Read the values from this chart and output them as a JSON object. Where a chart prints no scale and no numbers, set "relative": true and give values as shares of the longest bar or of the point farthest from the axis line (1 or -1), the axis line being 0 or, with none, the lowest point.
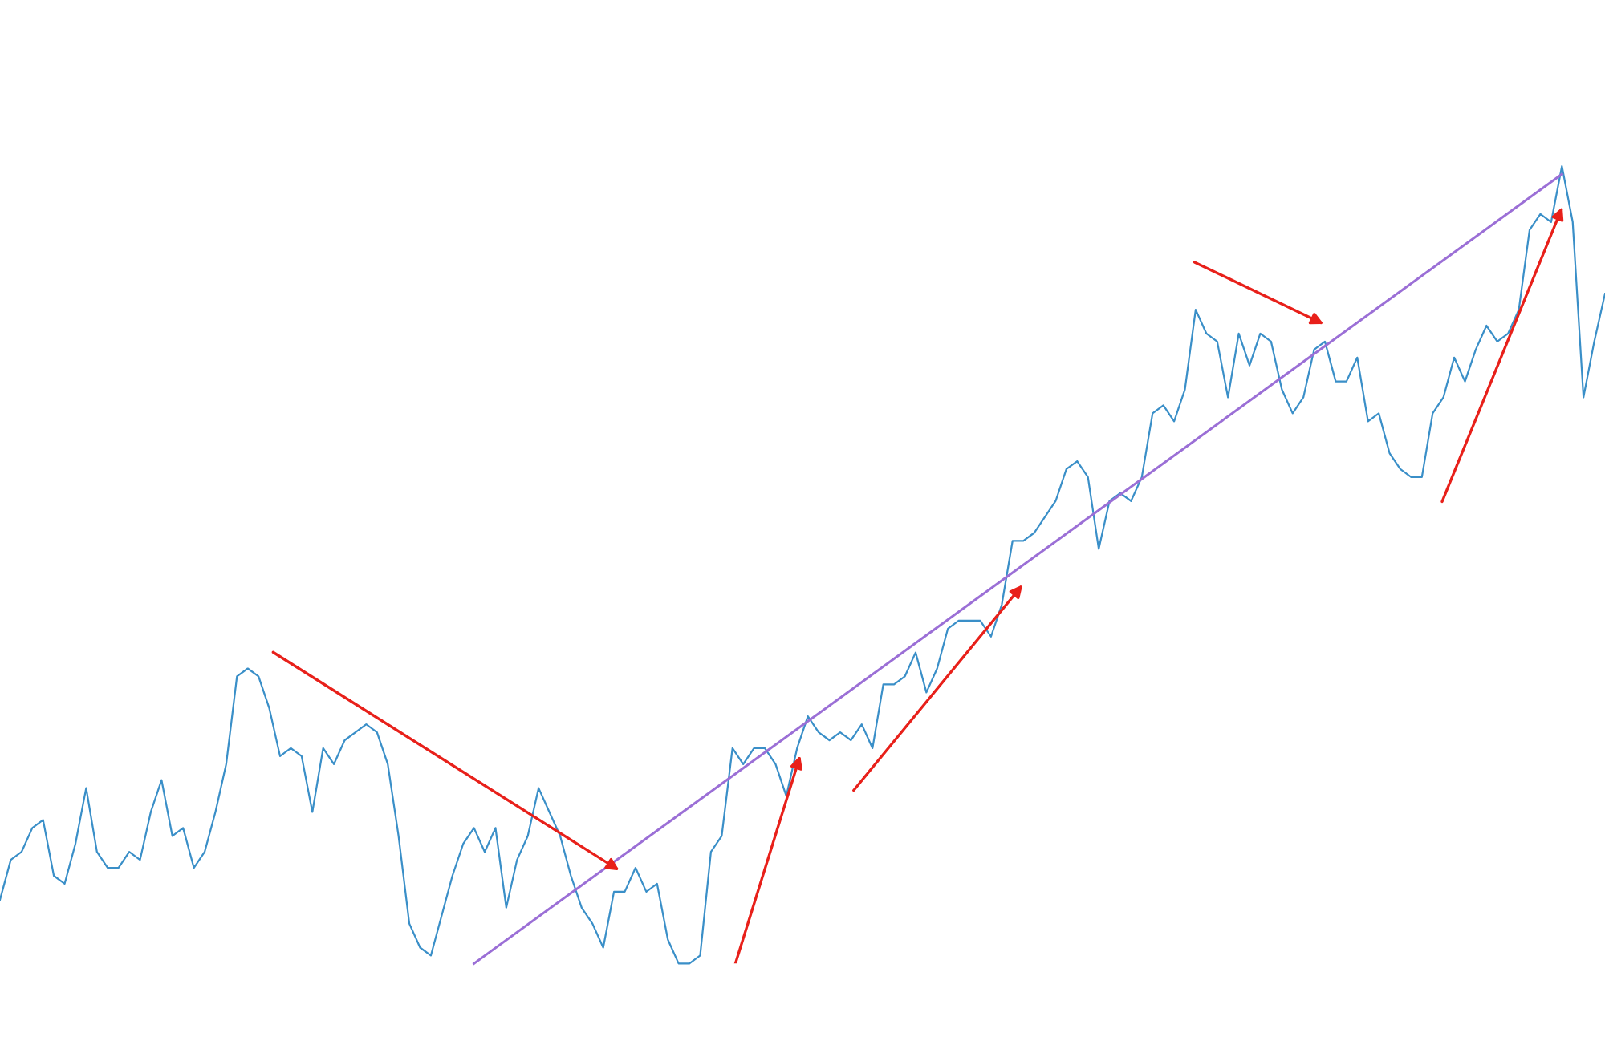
{
  "chart_data": {
    "type": "line",
    "relative": true,
    "marker": "none",
    "categories": [
      null,
      null,
      null,
      null,
      null,
      null,
      null,
      null,
      null,
      null,
      null,
      null,
      null,
      null,
      null,
      null,
      null,
      null,
      null,
      null,
      null,
      null,
      null,
      null,
      null,
      null,
      null,
      null,
      null,
      null,
      null,
      null,
      null,
      null,
      null,
      null,
      null,
      null,
      null,
      null,
      null,
      null,
      null,
      null,
      null,
      null,
      null,
      null,
      null,
      null,
      null,
      null,
      null,
      null,
      null,
      null,
      null,
      null,
      null,
      null,
      null,
      null,
      null,
      null,
      null,
      null,
      null,
      null,
      null,
      null,
      null,
      null,
      null,
      null,
      null,
      null,
      null,
      null,
      null,
      null,
      null,
      null,
      null,
      null,
      null,
      null,
      null,
      null,
      null,
      null,
      null,
      null,
      null,
      null,
      null,
      null,
      null,
      null,
      null,
      null,
      null,
      null,
      null,
      null,
      null,
      null,
      null,
      null,
      null,
      null,
      null,
      null,
      null,
      null,
      null,
      null,
      null,
      null,
      null,
      null,
      null,
      null,
      null,
      null,
      null,
      null,
      null,
      null,
      null,
      null,
      null,
      null,
      null,
      null,
      null,
      null,
      null,
      null,
      null,
      null,
      null,
      null,
      null,
      null,
      null,
      null,
      null,
      null,
      null,
      null
    ],
    "series": [
      {
        "color": "#3a8fc8",
        "values": [
          0.08,
          0.13,
          0.14,
          0.17,
          0.18,
          0.11,
          0.1,
          0.15,
          0.22,
          0.14,
          0.12,
          0.12,
          0.14,
          0.13,
          0.19,
          0.23,
          0.16,
          0.17,
          0.12,
          0.14,
          0.19,
          0.25,
          0.36,
          0.37,
          0.36,
          0.32,
          0.26,
          0.27,
          0.26,
          0.19,
          0.27,
          0.25,
          0.28,
          0.29,
          0.3,
          0.29,
          0.25,
          0.16,
          0.05,
          0.02,
          0.01,
          0.06,
          0.11,
          0.15,
          0.17,
          0.14,
          0.17,
          0.07,
          0.13,
          0.16,
          0.22,
          0.19,
          0.16,
          0.11,
          0.07,
          0.05,
          0.02,
          0.09,
          0.09,
          0.12,
          0.09,
          0.1,
          0.03,
          0.0,
          0.0,
          0.01,
          0.14,
          0.16,
          0.27,
          0.25,
          0.27,
          0.27,
          0.25,
          0.21,
          0.27,
          0.31,
          0.29,
          0.28,
          0.29,
          0.28,
          0.3,
          0.27,
          0.35,
          0.35,
          0.36,
          0.39,
          0.34,
          0.37,
          0.42,
          0.43,
          0.43,
          0.43,
          0.41,
          0.45,
          0.53,
          0.53,
          0.54,
          0.56,
          0.58,
          0.62,
          0.63,
          0.61,
          0.52,
          0.58,
          0.59,
          0.58,
          0.61,
          0.69,
          0.7,
          0.68,
          0.72,
          0.82,
          0.79,
          0.78,
          0.71,
          0.79,
          0.75,
          0.79,
          0.78,
          0.72,
          0.69,
          0.71,
          0.77,
          0.78,
          0.73,
          0.73,
          0.76,
          0.68,
          0.69,
          0.64,
          0.62,
          0.61,
          0.61,
          0.69,
          0.71,
          0.76,
          0.73,
          0.77,
          0.8,
          0.78,
          0.79,
          0.82,
          0.92,
          0.94,
          0.93,
          1.0,
          0.93,
          0.71,
          0.78,
          0.84
        ]
      },
      {
        "color": "#9b6fd6",
        "values": [
          null,
          null,
          null,
          null,
          null,
          null,
          null,
          null,
          null,
          null,
          null,
          null,
          null,
          null,
          null,
          null,
          null,
          null,
          null,
          null,
          null,
          null,
          null,
          null,
          null,
          null,
          null,
          null,
          null,
          null,
          null,
          null,
          null,
          null,
          null,
          null,
          null,
          null,
          null,
          null,
          null,
          null,
          null,
          null,
          0.0,
          null,
          null,
          null,
          null,
          null,
          null,
          null,
          null,
          null,
          null,
          null,
          null,
          null,
          null,
          null,
          null,
          null,
          null,
          null,
          null,
          null,
          null,
          null,
          null,
          null,
          null,
          null,
          null,
          null,
          null,
          null,
          null,
          null,
          null,
          null,
          null,
          null,
          null,
          null,
          null,
          null,
          null,
          null,
          null,
          null,
          null,
          null,
          null,
          null,
          null,
          null,
          null,
          null,
          null,
          null,
          null,
          null,
          null,
          null,
          null,
          null,
          null,
          null,
          null,
          null,
          null,
          null,
          null,
          null,
          null,
          null,
          null,
          null,
          null,
          null,
          null,
          null,
          null,
          null,
          null,
          null,
          null,
          null,
          null,
          null,
          null,
          null,
          null,
          null,
          null,
          null,
          null,
          null,
          null,
          null,
          null,
          null,
          null,
          null,
          null,
          0.99,
          null,
          null,
          null,
          null
        ]
      }
    ]
  }
}
